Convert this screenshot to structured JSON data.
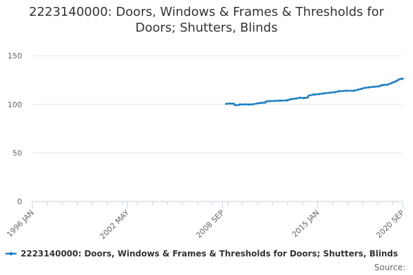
{
  "chart_data": {
    "type": "line",
    "title": "2223140000: Doors, Windows & Frames & Thresholds for Doors; Shutters, Blinds",
    "xlabel": "",
    "ylabel": "",
    "x_range": [
      "1996-01",
      "2020-09"
    ],
    "x_ticks": [
      "1996 JAN",
      "2002 MAY",
      "2008 SEP",
      "2015 JAN",
      "2020 SEP"
    ],
    "ylim": [
      0,
      160
    ],
    "y_ticks": [
      0,
      50,
      100,
      150
    ],
    "grid": true,
    "legend_position": "bottom",
    "series": [
      {
        "name": "2223140000: Doors, Windows & Frames & Thresholds for Doors; Shutters, Blinds",
        "color": "#1f7fc4",
        "points": [
          [
            "2008-12",
            100.5
          ],
          [
            "2009-03",
            100.8
          ],
          [
            "2009-06",
            100.6
          ],
          [
            "2009-07",
            99.2
          ],
          [
            "2009-10",
            99.3
          ],
          [
            "2009-11",
            99.8
          ],
          [
            "2010-03",
            100.0
          ],
          [
            "2010-06",
            99.8
          ],
          [
            "2010-09",
            100.0
          ],
          [
            "2011-01",
            101.0
          ],
          [
            "2011-04",
            101.5
          ],
          [
            "2011-07",
            101.8
          ],
          [
            "2011-08",
            103.0
          ],
          [
            "2011-11",
            103.3
          ],
          [
            "2012-03",
            103.5
          ],
          [
            "2012-07",
            103.8
          ],
          [
            "2012-12",
            104.0
          ],
          [
            "2013-01",
            104.3
          ],
          [
            "2013-03",
            105.2
          ],
          [
            "2013-05",
            105.5
          ],
          [
            "2013-08",
            106.0
          ],
          [
            "2013-11",
            106.8
          ],
          [
            "2014-02",
            106.5
          ],
          [
            "2014-05",
            107.0
          ],
          [
            "2014-06",
            109.0
          ],
          [
            "2014-10",
            110.0
          ],
          [
            "2015-02",
            110.5
          ],
          [
            "2015-06",
            111.2
          ],
          [
            "2015-11",
            112.0
          ],
          [
            "2016-03",
            112.5
          ],
          [
            "2016-06",
            113.5
          ],
          [
            "2016-12",
            114.0
          ],
          [
            "2017-06",
            114.0
          ],
          [
            "2017-09",
            115.0
          ],
          [
            "2017-12",
            116.0
          ],
          [
            "2018-03",
            117.0
          ],
          [
            "2018-06",
            117.5
          ],
          [
            "2018-10",
            118.0
          ],
          [
            "2019-02",
            118.5
          ],
          [
            "2019-04",
            119.5
          ],
          [
            "2019-06",
            120.0
          ],
          [
            "2019-09",
            120.3
          ],
          [
            "2019-12",
            121.8
          ],
          [
            "2020-02",
            123.0
          ],
          [
            "2020-04",
            124.0
          ],
          [
            "2020-06",
            125.5
          ],
          [
            "2020-08",
            126.2
          ],
          [
            "2020-09",
            126.5
          ]
        ]
      }
    ]
  },
  "source_label": "Source:"
}
